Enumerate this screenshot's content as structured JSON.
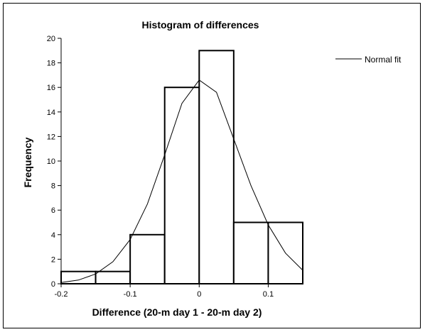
{
  "chart_data": {
    "type": "bar",
    "title": "Histogram of differences",
    "xlabel": "Difference (20-m day 1 - 20-m day 2)",
    "ylabel": "Frequency",
    "xlim": [
      -0.2,
      0.15
    ],
    "ylim": [
      0,
      20
    ],
    "x_ticks": [
      "-0.2",
      "-0.1",
      "0",
      "0.1"
    ],
    "y_ticks": [
      "0",
      "2",
      "4",
      "6",
      "8",
      "10",
      "12",
      "14",
      "16",
      "18",
      "20"
    ],
    "bins": [
      {
        "x0": -0.2,
        "x1": -0.15,
        "value": 1
      },
      {
        "x0": -0.15,
        "x1": -0.1,
        "value": 1
      },
      {
        "x0": -0.1,
        "x1": -0.05,
        "value": 4
      },
      {
        "x0": -0.05,
        "x1": 0.0,
        "value": 16
      },
      {
        "x0": 0.0,
        "x1": 0.05,
        "value": 19
      },
      {
        "x0": 0.05,
        "x1": 0.1,
        "value": 5
      },
      {
        "x0": 0.1,
        "x1": 0.15,
        "value": 5
      }
    ],
    "fit": {
      "name": "Normal fit",
      "x": [
        -0.2,
        -0.175,
        -0.15,
        -0.125,
        -0.1,
        -0.075,
        -0.05,
        -0.025,
        0.0,
        0.025,
        0.05,
        0.075,
        0.1,
        0.125,
        0.15
      ],
      "y": [
        0.1,
        0.3,
        0.8,
        1.8,
        3.6,
        6.5,
        10.5,
        14.7,
        16.6,
        15.6,
        11.8,
        8.0,
        4.8,
        2.5,
        1.1
      ]
    },
    "legend": {
      "position": "top-right",
      "entries": [
        "Normal fit"
      ]
    },
    "grid": false,
    "colors": {
      "bars_stroke": "#000000",
      "bars_fill": "#ffffff",
      "fit_line": "#000000"
    }
  }
}
